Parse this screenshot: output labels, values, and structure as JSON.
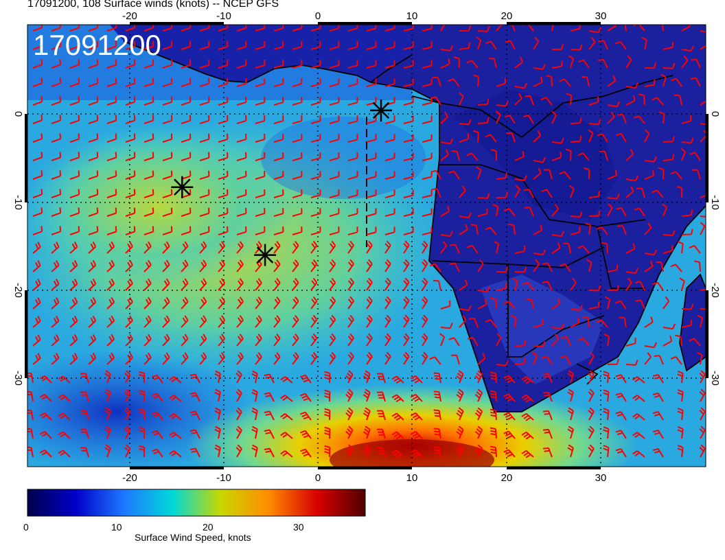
{
  "title": "17091200, 108 Surface winds (knots) -- NCEP GFS",
  "stamp": "17091200",
  "x_axis": {
    "top_ticks": [
      "-20",
      "-10",
      "0",
      "10",
      "20",
      "30"
    ],
    "bottom_ticks": [
      "-20",
      "-10",
      "0",
      "10",
      "20",
      "30"
    ]
  },
  "y_axis": {
    "left_ticks": [
      "0",
      "-10",
      "-20",
      "-30"
    ],
    "right_ticks": [
      "0",
      "-10",
      "-20",
      "-30"
    ]
  },
  "colorbar": {
    "label": "Surface Wind Speed, knots",
    "ticks": [
      "0",
      "10",
      "20",
      "30"
    ],
    "tick_values": [
      0,
      10,
      20,
      30
    ],
    "range": [
      0,
      37
    ],
    "stops": [
      "#00004a",
      "#0000c8",
      "#1e78ff",
      "#00d8d8",
      "#c8d800",
      "#ff8c00",
      "#d80000",
      "#500000"
    ]
  },
  "markers": [
    {
      "name": "star-1",
      "lon": 6.7,
      "lat": 0.4
    },
    {
      "name": "star-2",
      "lon": -14.4,
      "lat": -8.3
    },
    {
      "name": "star-3",
      "lon": -5.6,
      "lat": -16.0
    }
  ],
  "map_extent": {
    "lon": [
      -31,
      41
    ],
    "lat": [
      -40,
      10
    ]
  },
  "colors": {
    "barb": "#ff0000",
    "land": "#1a1f9e",
    "ocean_low": "#1e50d8",
    "ocean_mid": "#3fd0c0",
    "ocean_high": "#d8d000",
    "ocean_max": "#c80000"
  }
}
